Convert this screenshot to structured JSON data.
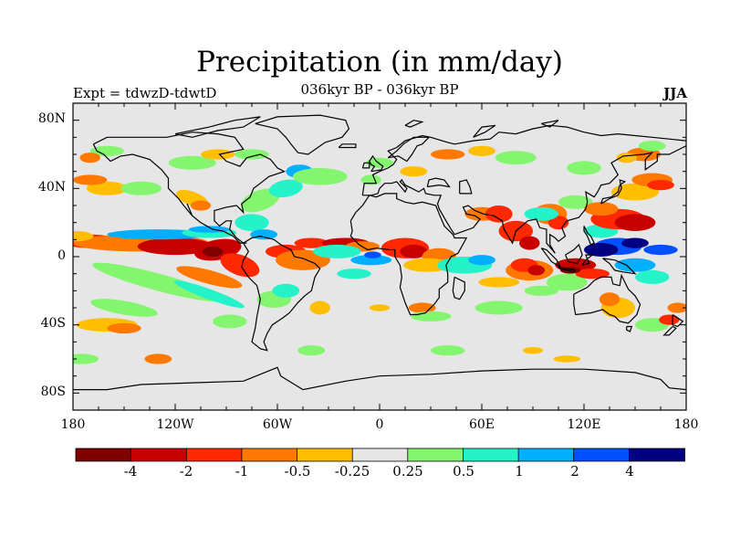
{
  "chart_data": {
    "type": "contour-map",
    "title": "Precipitation (in mm/day)",
    "subtitle": "036kyr BP - 036kyr BP",
    "left_string": "Expt = tdwzD-tdwtD",
    "right_string": "JJA",
    "y_ticks": [
      "80N",
      "40N",
      "0",
      "40S",
      "80S"
    ],
    "x_ticks": [
      "180",
      "120W",
      "60W",
      "0",
      "60E",
      "120E",
      "180"
    ],
    "lon_range": [
      -180,
      180
    ],
    "lat_range": [
      -90,
      90
    ],
    "colorbar": {
      "labels": [
        "-4",
        "-2",
        "-1",
        "-0.5",
        "-0.25",
        "0.25",
        "0.5",
        "1",
        "2",
        "4"
      ],
      "colors": [
        "#800000",
        "#c80000",
        "#ff2800",
        "#ff7800",
        "#ffbe00",
        "#e6e6e6",
        "#84f56e",
        "#24f2c8",
        "#00b0ff",
        "#0050ff",
        "#000080"
      ]
    },
    "background_color": "#e6e6e6"
  }
}
